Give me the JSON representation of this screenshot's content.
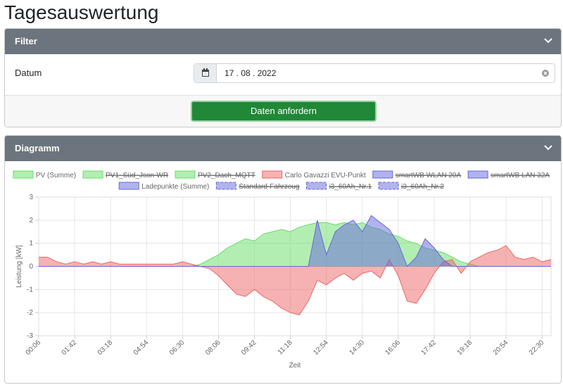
{
  "title": "Tagesauswertung",
  "filter": {
    "heading": "Filter",
    "label": "Datum",
    "date": "17 . 08 . 2022",
    "button": "Daten anfordern"
  },
  "diagram": {
    "heading": "Diagramm"
  },
  "chart_data": {
    "type": "area",
    "x_label": "Zeit",
    "y_label": "Leistung [kW]",
    "ylim": [
      -3,
      3
    ],
    "yticks": [
      -3,
      -2,
      -1,
      0,
      1,
      2,
      3
    ],
    "grid": true,
    "categories": [
      "00:06",
      null,
      null,
      null,
      "01:42",
      null,
      null,
      null,
      "03:18",
      null,
      null,
      null,
      "04:54",
      null,
      null,
      null,
      "06:30",
      null,
      null,
      null,
      "08:06",
      null,
      null,
      null,
      "09:42",
      null,
      null,
      null,
      "11:18",
      null,
      null,
      null,
      "12:54",
      null,
      null,
      null,
      "14:30",
      null,
      null,
      null,
      "16:06",
      null,
      null,
      null,
      "17:42",
      null,
      null,
      null,
      "19:18",
      null,
      null,
      null,
      "20:54",
      null,
      null,
      null,
      "22:30",
      null
    ],
    "series": [
      {
        "name": "PV (Summe)",
        "color": "#66dd66",
        "values": [
          0,
          0,
          0,
          0,
          0,
          0,
          0,
          0,
          0,
          0,
          0,
          0,
          0,
          0,
          0,
          0,
          0,
          0,
          0.1,
          0.3,
          0.5,
          0.8,
          1.0,
          1.2,
          1.1,
          1.4,
          1.5,
          1.6,
          1.5,
          1.7,
          1.8,
          1.9,
          1.9,
          1.8,
          1.9,
          1.8,
          1.9,
          1.7,
          1.6,
          1.4,
          1.3,
          1.1,
          1.0,
          0.8,
          0.7,
          0.6,
          0.4,
          0.2,
          0.1,
          0,
          0,
          0,
          0,
          0,
          0,
          0,
          0,
          0
        ]
      },
      {
        "name": "PV1_Süd_Json-WR",
        "color": "#66dd66",
        "hidden": true
      },
      {
        "name": "PV2_Dach_MQTT",
        "color": "#66dd66",
        "hidden": true
      },
      {
        "name": "Carlo Gavazzi EVU-Punkt",
        "color": "#ee6666",
        "values": [
          0.4,
          0.4,
          0.2,
          0.1,
          0.2,
          0.1,
          0.2,
          0.1,
          0.2,
          0.1,
          0.1,
          0.1,
          0.1,
          0.1,
          0.1,
          0.1,
          0.2,
          0.1,
          0,
          -0.1,
          -0.4,
          -0.8,
          -1.2,
          -1.3,
          -1.0,
          -1.3,
          -1.5,
          -1.8,
          -2.0,
          -2.1,
          -1.5,
          -0.6,
          -0.8,
          -0.5,
          -0.3,
          -0.6,
          -0.3,
          -0.2,
          -0.5,
          0.3,
          -0.4,
          -1.5,
          -1.6,
          -1.0,
          -0.3,
          0.2,
          0.3,
          -0.3,
          0.2,
          0.4,
          0.6,
          0.7,
          0.9,
          0.4,
          0.3,
          0.4,
          0.2,
          0.3
        ]
      },
      {
        "name": "smartWB WLAN 20A",
        "color": "#6666dd",
        "hidden": true
      },
      {
        "name": "smartWB LAN 32A",
        "color": "#6666dd",
        "hidden": true
      },
      {
        "name": "Ladepunkte (Summe)",
        "color": "#6666dd",
        "values": [
          0,
          0,
          0,
          0,
          0,
          0,
          0,
          0,
          0,
          0,
          0,
          0,
          0,
          0,
          0,
          0,
          0,
          0,
          0,
          0,
          0,
          0,
          0,
          0,
          0,
          0,
          0,
          0,
          0,
          0,
          0,
          2.0,
          0.5,
          1.5,
          1.8,
          2.0,
          1.5,
          2.2,
          1.9,
          1.6,
          1.0,
          0,
          0.4,
          1.2,
          0.8,
          0.3,
          0,
          0,
          0,
          0,
          0,
          0,
          0,
          0,
          0,
          0,
          0,
          0
        ]
      },
      {
        "name": "Standard-Fahrzeug",
        "color": "#6666dd",
        "hidden": true,
        "dashed": true
      },
      {
        "name": "i3_60Ah_Nr.1",
        "color": "#6666dd",
        "hidden": true,
        "dashed": true
      },
      {
        "name": "i3_60Ah_Nr.2",
        "color": "#6666dd",
        "hidden": true,
        "dashed": true
      }
    ]
  }
}
